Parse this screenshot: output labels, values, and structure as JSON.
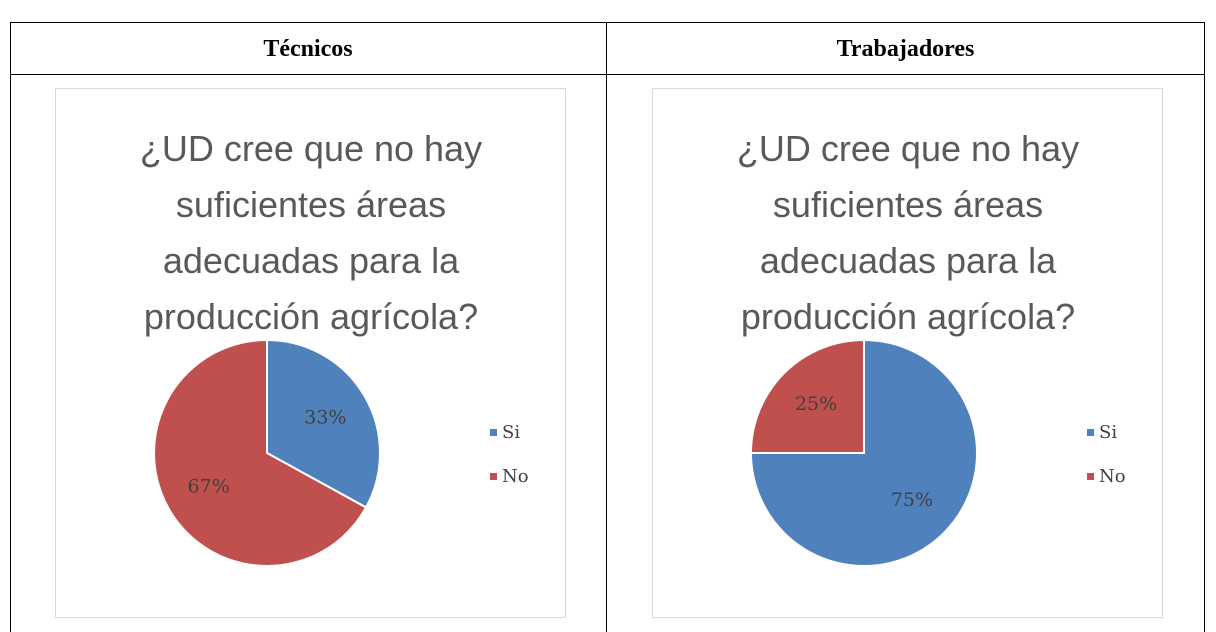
{
  "table": {
    "headers": [
      "Técnicos",
      "Trabajadores"
    ]
  },
  "chart_data": [
    {
      "type": "pie",
      "title": "¿UD cree que no hay suficientes áreas adecuadas para la producción agrícola?",
      "categories": [
        "Si",
        "No"
      ],
      "values": [
        33,
        67
      ],
      "value_labels": [
        "33%",
        "67%"
      ],
      "colors": [
        "#4f81bd",
        "#c0504d"
      ],
      "legend": "right"
    },
    {
      "type": "pie",
      "title": "¿UD cree que no hay suficientes áreas adecuadas para la producción agrícola?",
      "categories": [
        "Si",
        "No"
      ],
      "values": [
        75,
        25
      ],
      "value_labels": [
        "75%",
        "25%"
      ],
      "colors": [
        "#4f81bd",
        "#c0504d"
      ],
      "legend": "right"
    }
  ]
}
